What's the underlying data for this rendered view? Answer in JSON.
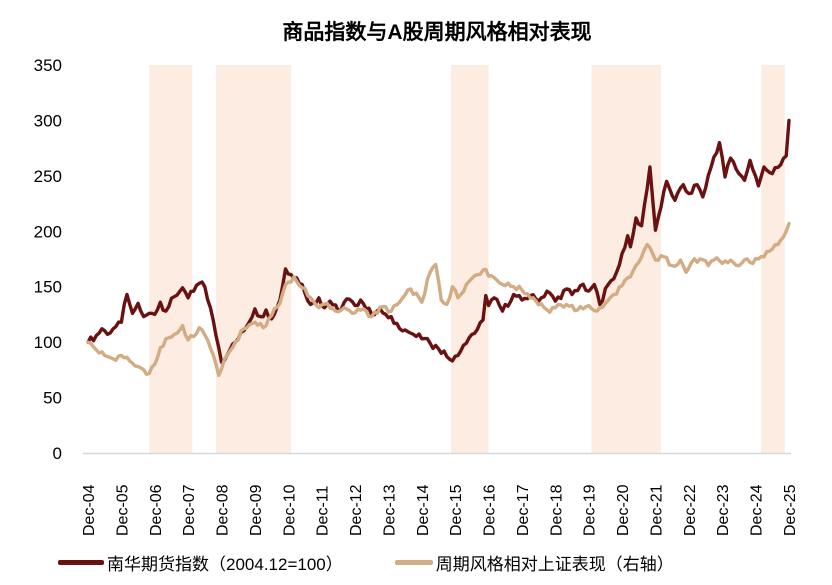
{
  "chart_data": {
    "type": "line",
    "title": "商品指数与A股周期风格相对表现",
    "t_unit": "months since 2004-12",
    "x_axis": {
      "labels": [
        "Dec-04",
        "Dec-05",
        "Dec-06",
        "Dec-07",
        "Dec-08",
        "Dec-09",
        "Dec-10",
        "Dec-11",
        "Dec-12",
        "Dec-13",
        "Dec-14",
        "Dec-15",
        "Dec-16",
        "Dec-17",
        "Dec-18",
        "Dec-19",
        "Dec-20",
        "Dec-21",
        "Dec-22",
        "Dec-23",
        "Dec-24",
        "Dec-25"
      ],
      "months_per_tick": 12
    },
    "y_axis": {
      "ticks": [
        0,
        50,
        100,
        150,
        200,
        250,
        300,
        350
      ],
      "min": 0,
      "max": 350
    },
    "grid": false,
    "legend_position": "bottom",
    "colors": {
      "band": "#fcece2",
      "axis_line": "#d8d8d8",
      "text": "#000000"
    },
    "shaded_bands": [
      [
        22,
        37.5
      ],
      [
        46,
        73
      ],
      [
        130.5,
        144
      ],
      [
        181,
        206
      ],
      [
        242,
        250.5
      ]
    ],
    "series": [
      {
        "name": "南华期货指数（2004.12=100）",
        "color": "#6a1211",
        "axis": "left",
        "points": [
          [
            0,
            100
          ],
          [
            3,
            106
          ],
          [
            5,
            112
          ],
          [
            7,
            107
          ],
          [
            10,
            114
          ],
          [
            12,
            118
          ],
          [
            14,
            143
          ],
          [
            16,
            126
          ],
          [
            18,
            135
          ],
          [
            20,
            123
          ],
          [
            23,
            126
          ],
          [
            24,
            125
          ],
          [
            26,
            136
          ],
          [
            28,
            128
          ],
          [
            31,
            141
          ],
          [
            34,
            149
          ],
          [
            36,
            140
          ],
          [
            38,
            146
          ],
          [
            40,
            153
          ],
          [
            42,
            150
          ],
          [
            45,
            120
          ],
          [
            47,
            95
          ],
          [
            48,
            82
          ],
          [
            51,
            93
          ],
          [
            54,
            103
          ],
          [
            57,
            114
          ],
          [
            60,
            130
          ],
          [
            62,
            123
          ],
          [
            64,
            129
          ],
          [
            66,
            121
          ],
          [
            69,
            138
          ],
          [
            71,
            166
          ],
          [
            73,
            161
          ],
          [
            75,
            158
          ],
          [
            77,
            152
          ],
          [
            80,
            134
          ],
          [
            83,
            140
          ],
          [
            85,
            131
          ],
          [
            87,
            137
          ],
          [
            90,
            128
          ],
          [
            93,
            139
          ],
          [
            96,
            133
          ],
          [
            98,
            138
          ],
          [
            102,
            125
          ],
          [
            105,
            130
          ],
          [
            108,
            122
          ],
          [
            111,
            117
          ],
          [
            114,
            111
          ],
          [
            117,
            107
          ],
          [
            120,
            103
          ],
          [
            123,
            99
          ],
          [
            126,
            94
          ],
          [
            129,
            87
          ],
          [
            131,
            83
          ],
          [
            133,
            88
          ],
          [
            136,
            99
          ],
          [
            139,
            108
          ],
          [
            142,
            120
          ],
          [
            143,
            142
          ],
          [
            144,
            133
          ],
          [
            146,
            140
          ],
          [
            149,
            128
          ],
          [
            153,
            143
          ],
          [
            156,
            138
          ],
          [
            159,
            142
          ],
          [
            162,
            137
          ],
          [
            165,
            146
          ],
          [
            168,
            137
          ],
          [
            172,
            148
          ],
          [
            174,
            143
          ],
          [
            177,
            151
          ],
          [
            180,
            146
          ],
          [
            182,
            152
          ],
          [
            184,
            134
          ],
          [
            187,
            152
          ],
          [
            190,
            163
          ],
          [
            192,
            180
          ],
          [
            194,
            196
          ],
          [
            195,
            186
          ],
          [
            197,
            212
          ],
          [
            199,
            205
          ],
          [
            202,
            258
          ],
          [
            204,
            201
          ],
          [
            206,
            222
          ],
          [
            208,
            245
          ],
          [
            211,
            228
          ],
          [
            214,
            242
          ],
          [
            216,
            234
          ],
          [
            219,
            242
          ],
          [
            221,
            231
          ],
          [
            225,
            267
          ],
          [
            227,
            280
          ],
          [
            229,
            249
          ],
          [
            231,
            266
          ],
          [
            234,
            252
          ],
          [
            236,
            246
          ],
          [
            238,
            264
          ],
          [
            241,
            241
          ],
          [
            243,
            258
          ],
          [
            246,
            252
          ],
          [
            249,
            260
          ],
          [
            251,
            268
          ],
          [
            252,
            300
          ]
        ]
      },
      {
        "name": "周期风格相对上证表现（右轴）",
        "color": "#d2ac85",
        "axis": "right",
        "points": [
          [
            0,
            100
          ],
          [
            3,
            93
          ],
          [
            6,
            88
          ],
          [
            9,
            85
          ],
          [
            12,
            88
          ],
          [
            15,
            83
          ],
          [
            18,
            78
          ],
          [
            21,
            71
          ],
          [
            24,
            80
          ],
          [
            26,
            95
          ],
          [
            29,
            104
          ],
          [
            32,
            108
          ],
          [
            34,
            115
          ],
          [
            36,
            102
          ],
          [
            38,
            105
          ],
          [
            40,
            113
          ],
          [
            43,
            102
          ],
          [
            46,
            80
          ],
          [
            47,
            70
          ],
          [
            50,
            88
          ],
          [
            53,
            100
          ],
          [
            56,
            112
          ],
          [
            60,
            118
          ],
          [
            63,
            113
          ],
          [
            66,
            124
          ],
          [
            69,
            135
          ],
          [
            71,
            152
          ],
          [
            74,
            159
          ],
          [
            77,
            149
          ],
          [
            80,
            140
          ],
          [
            83,
            131
          ],
          [
            86,
            135
          ],
          [
            89,
            128
          ],
          [
            92,
            131
          ],
          [
            95,
            126
          ],
          [
            99,
            130
          ],
          [
            102,
            123
          ],
          [
            106,
            132
          ],
          [
            109,
            128
          ],
          [
            112,
            136
          ],
          [
            116,
            148
          ],
          [
            119,
            140
          ],
          [
            120,
            136
          ],
          [
            123,
            163
          ],
          [
            125,
            170
          ],
          [
            127,
            138
          ],
          [
            129,
            134
          ],
          [
            131,
            150
          ],
          [
            133,
            140
          ],
          [
            136,
            152
          ],
          [
            139,
            160
          ],
          [
            142,
            165
          ],
          [
            145,
            160
          ],
          [
            149,
            152
          ],
          [
            153,
            150
          ],
          [
            156,
            147
          ],
          [
            160,
            140
          ],
          [
            164,
            131
          ],
          [
            166,
            127
          ],
          [
            168,
            131
          ],
          [
            172,
            134
          ],
          [
            176,
            129
          ],
          [
            180,
            133
          ],
          [
            183,
            128
          ],
          [
            186,
            135
          ],
          [
            189,
            143
          ],
          [
            192,
            151
          ],
          [
            195,
            159
          ],
          [
            198,
            172
          ],
          [
            201,
            188
          ],
          [
            204,
            174
          ],
          [
            207,
            177
          ],
          [
            210,
            169
          ],
          [
            213,
            174
          ],
          [
            215,
            163
          ],
          [
            217,
            172
          ],
          [
            220,
            175
          ],
          [
            223,
            169
          ],
          [
            226,
            176
          ],
          [
            228,
            171
          ],
          [
            231,
            174
          ],
          [
            234,
            169
          ],
          [
            237,
            175
          ],
          [
            239,
            171
          ],
          [
            241,
            175
          ],
          [
            243,
            177
          ],
          [
            246,
            184
          ],
          [
            249,
            192
          ],
          [
            251,
            200
          ],
          [
            252,
            207
          ]
        ]
      }
    ]
  }
}
